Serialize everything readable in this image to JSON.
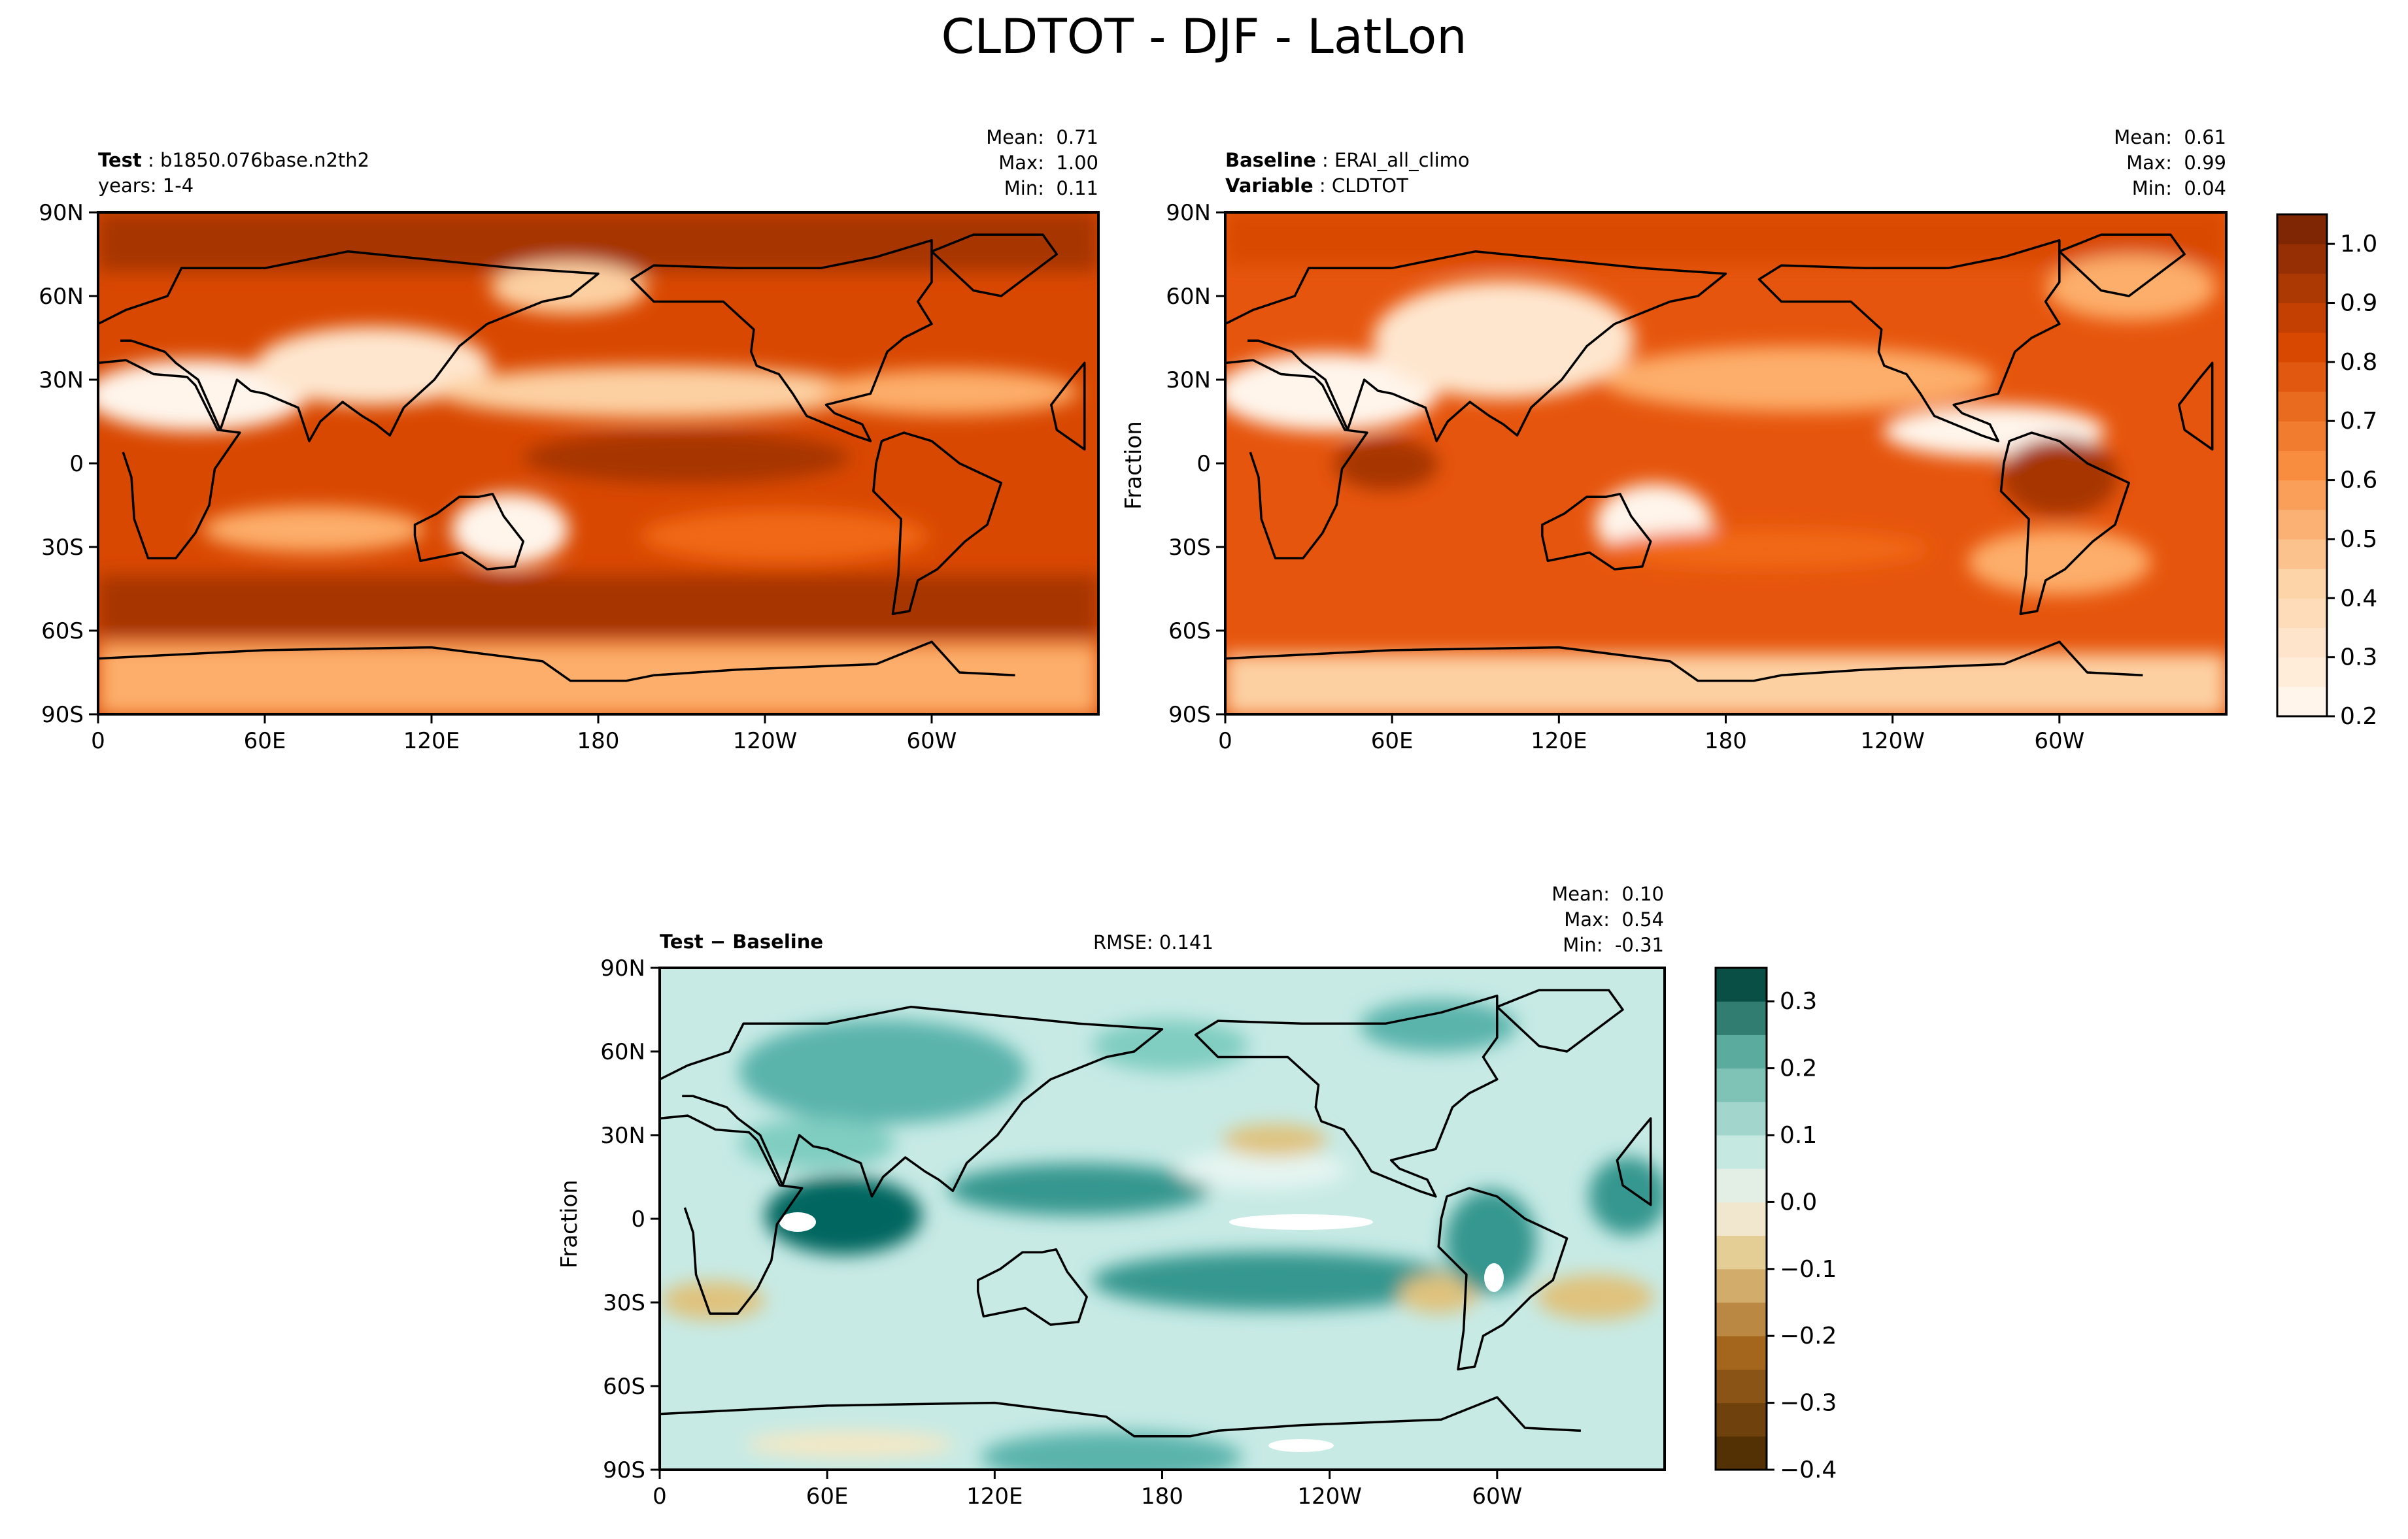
{
  "figure": {
    "title": "CLDTOT - DJF - LatLon"
  },
  "chart_data": [
    {
      "type": "heatmap",
      "panel": "test",
      "header": [
        {
          "key": "Test",
          "value": "b1850.076base.n2th2"
        },
        {
          "key": "",
          "value": "years: 1-4"
        }
      ],
      "stats": {
        "mean": "0.71",
        "max": "1.00",
        "min": "0.11"
      },
      "xticks": [
        "0",
        "60E",
        "120E",
        "180",
        "120W",
        "60W"
      ],
      "yticks": [
        "90N",
        "60N",
        "30N",
        "0",
        "30S",
        "60S",
        "90S"
      ],
      "ylabel": "",
      "colormap": "Oranges",
      "zlim": [
        0.2,
        1.0
      ]
    },
    {
      "type": "heatmap",
      "panel": "baseline",
      "header": [
        {
          "key": "Baseline",
          "value": "ERAI_all_climo"
        },
        {
          "key": "Variable",
          "value": "CLDTOT"
        }
      ],
      "stats": {
        "mean": "0.61",
        "max": "0.99",
        "min": "0.04"
      },
      "xticks": [
        "0",
        "60E",
        "120E",
        "180",
        "120W",
        "60W"
      ],
      "yticks": [
        "90N",
        "60N",
        "30N",
        "0",
        "30S",
        "60S",
        "90S"
      ],
      "ylabel": "Fraction",
      "colormap": "Oranges",
      "zlim": [
        0.2,
        1.0
      ],
      "colorbar": {
        "ticks": [
          "0.2",
          "0.3",
          "0.4",
          "0.5",
          "0.6",
          "0.7",
          "0.8",
          "0.9",
          "1.0"
        ],
        "range": [
          0.2,
          1.05
        ]
      }
    },
    {
      "type": "heatmap",
      "panel": "difference",
      "header": [
        {
          "key": "Test − Baseline",
          "value": ""
        }
      ],
      "rmse": "RMSE: 0.141",
      "stats": {
        "mean": "0.10",
        "max": "0.54",
        "min": "-0.31"
      },
      "xticks": [
        "0",
        "60E",
        "120E",
        "180",
        "120W",
        "60W"
      ],
      "yticks": [
        "90N",
        "60N",
        "30N",
        "0",
        "30S",
        "60S",
        "90S"
      ],
      "ylabel": "Fraction",
      "colormap": "BrBG",
      "zlim": [
        -0.4,
        0.35
      ],
      "colorbar": {
        "ticks": [
          "0.3",
          "0.2",
          "0.1",
          "0.0",
          "−0.1",
          "−0.2",
          "−0.3",
          "−0.4"
        ],
        "range": [
          -0.4,
          0.35
        ]
      }
    }
  ]
}
